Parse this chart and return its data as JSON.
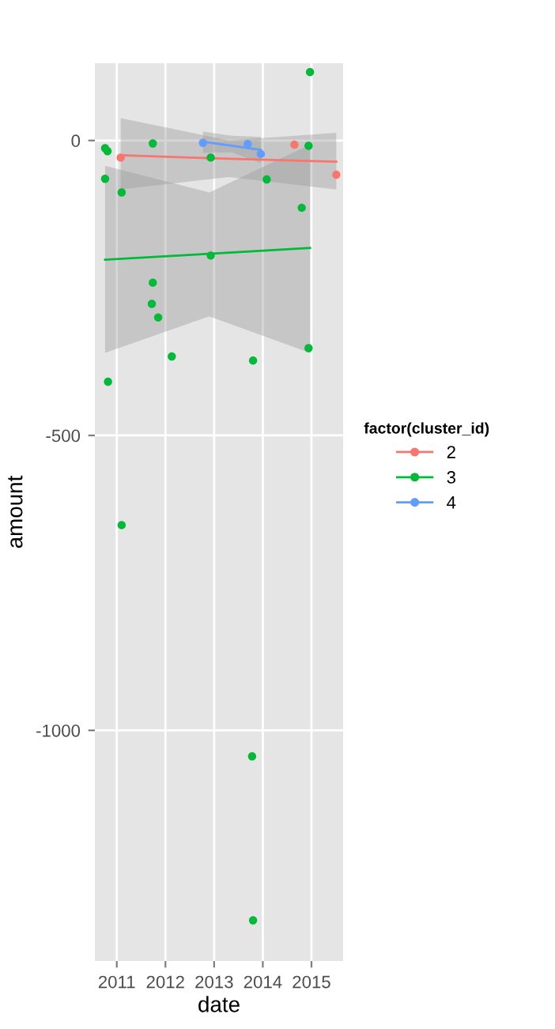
{
  "chart_data": {
    "type": "scatter",
    "xlabel": "date",
    "ylabel": "amount",
    "legend_title": "factor(cluster_id)",
    "legend": "right",
    "grid": true,
    "marker": "circle",
    "xlim": [
      2010.55,
      2015.65
    ],
    "xticks": [
      2011,
      2012,
      2013,
      2014,
      2015
    ],
    "ylim": [
      -1391,
      131
    ],
    "yticks": [
      -1000,
      -500,
      0
    ],
    "series": [
      {
        "name": "2",
        "color": "#f8766d",
        "x": [
          2011.08,
          2014.65,
          2015.51
        ],
        "values": [
          -29,
          -7,
          -58
        ]
      },
      {
        "name": "3",
        "color": "#00ba38",
        "x": [
          2014.97,
          2010.76,
          2010.81,
          2011.74,
          2010.76,
          2011.1,
          2012.93,
          2014.08,
          2014.94,
          2014.8,
          2012.93,
          2011.74,
          2011.72,
          2011.85,
          2012.13,
          2013.8,
          2014.94,
          2010.82,
          2011.1,
          2013.78,
          2013.8
        ],
        "values": [
          116,
          -13,
          -18,
          -5,
          -65,
          -88,
          -29,
          -66,
          -9,
          -114,
          -195,
          -241,
          -277,
          -300,
          -366,
          -373,
          -352,
          -409,
          -652,
          -1044,
          -1322
        ]
      },
      {
        "name": "4",
        "color": "#619cff",
        "x": [
          2012.77,
          2013.69,
          2013.96
        ],
        "values": [
          -4,
          -6,
          -23
        ]
      },
      {
        "type": "line",
        "marker": "none",
        "color": "#f8766d",
        "x": [
          2011.08,
          2013.3,
          2015.51
        ],
        "values": [
          -25,
          -31,
          -36
        ],
        "lower": [
          -83,
          -62,
          -83
        ],
        "upper": [
          38,
          0,
          13
        ]
      },
      {
        "type": "line",
        "marker": "none",
        "color": "#00ba38",
        "x": [
          2010.76,
          2012.9,
          2014.97
        ],
        "values": [
          -202,
          -192,
          -182
        ],
        "lower": [
          -360,
          -298,
          -360
        ],
        "upper": [
          -43,
          -88,
          -7
        ]
      },
      {
        "type": "line",
        "marker": "none",
        "color": "#619cff",
        "x": [
          2012.77,
          2013.36,
          2013.96
        ],
        "values": [
          -2,
          -9,
          -16
        ],
        "lower": [
          -21,
          -20,
          -38
        ],
        "upper": [
          15,
          8,
          6
        ]
      }
    ]
  }
}
